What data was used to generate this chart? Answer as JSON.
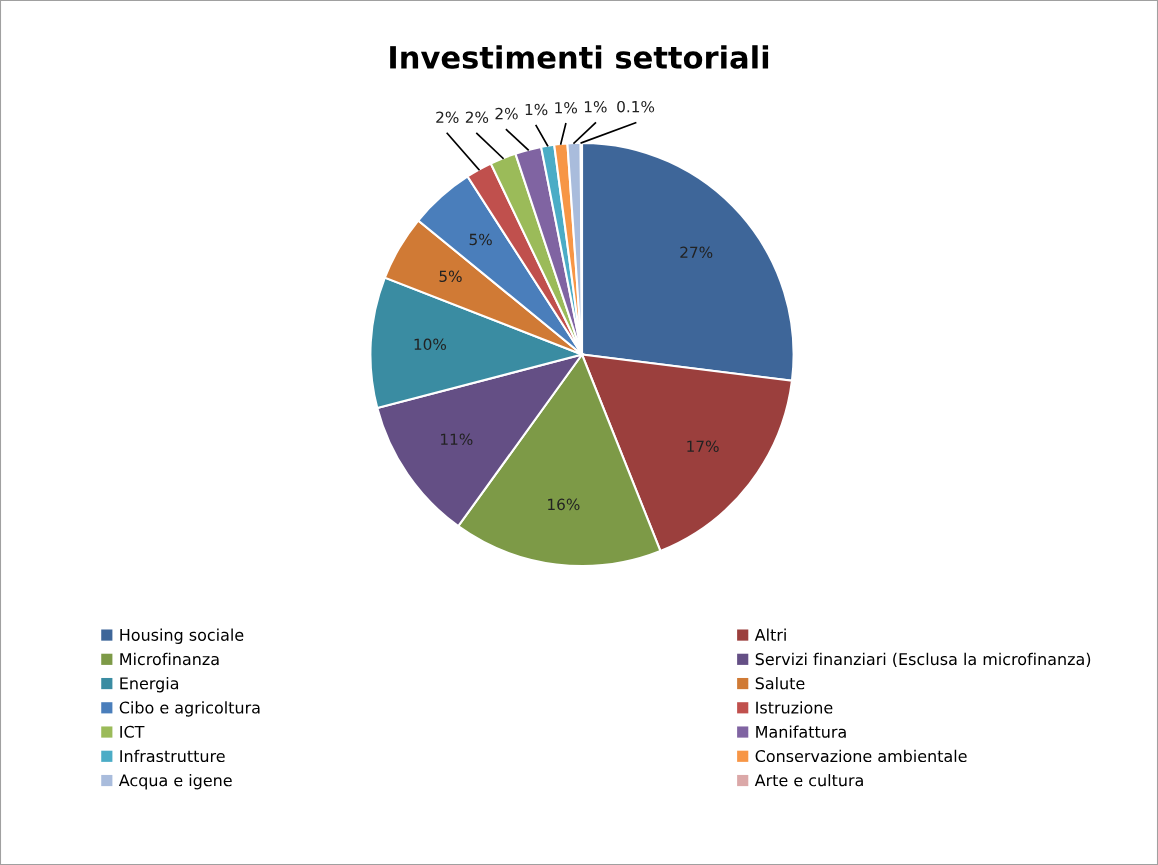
{
  "chart_data": {
    "type": "pie",
    "title": "Investimenti settoriali",
    "categories": [
      "Housing sociale",
      "Altri",
      "Microfinanza",
      "Servizi finanziari (Esclusa la microfinanza)",
      "Energia",
      "Salute",
      "Cibo e agricoltura",
      "Istruzione",
      "ICT",
      "Manifattura",
      "Infrastrutture",
      "Conservazione ambientale",
      "Acqua e igene",
      "Arte e cultura"
    ],
    "values": [
      27,
      17,
      16,
      11,
      10,
      5,
      5,
      2,
      2,
      2,
      1,
      1,
      1,
      0.1
    ],
    "colors": [
      "#3e6699",
      "#9b3f3d",
      "#7d9a47",
      "#644f85",
      "#3a8ca2",
      "#d07a35",
      "#4a7ebb",
      "#c0504d",
      "#9bbb59",
      "#8064a2",
      "#4bacc6",
      "#f79646",
      "#a9bcdc",
      "#dba8a8"
    ],
    "value_labels": [
      "27%",
      "17%",
      "16%",
      "11%",
      "10%",
      "5%",
      "5%",
      "2%",
      "2%",
      "2%",
      "1%",
      "1%",
      "1%",
      "0.1%"
    ],
    "legend": "bottom"
  }
}
